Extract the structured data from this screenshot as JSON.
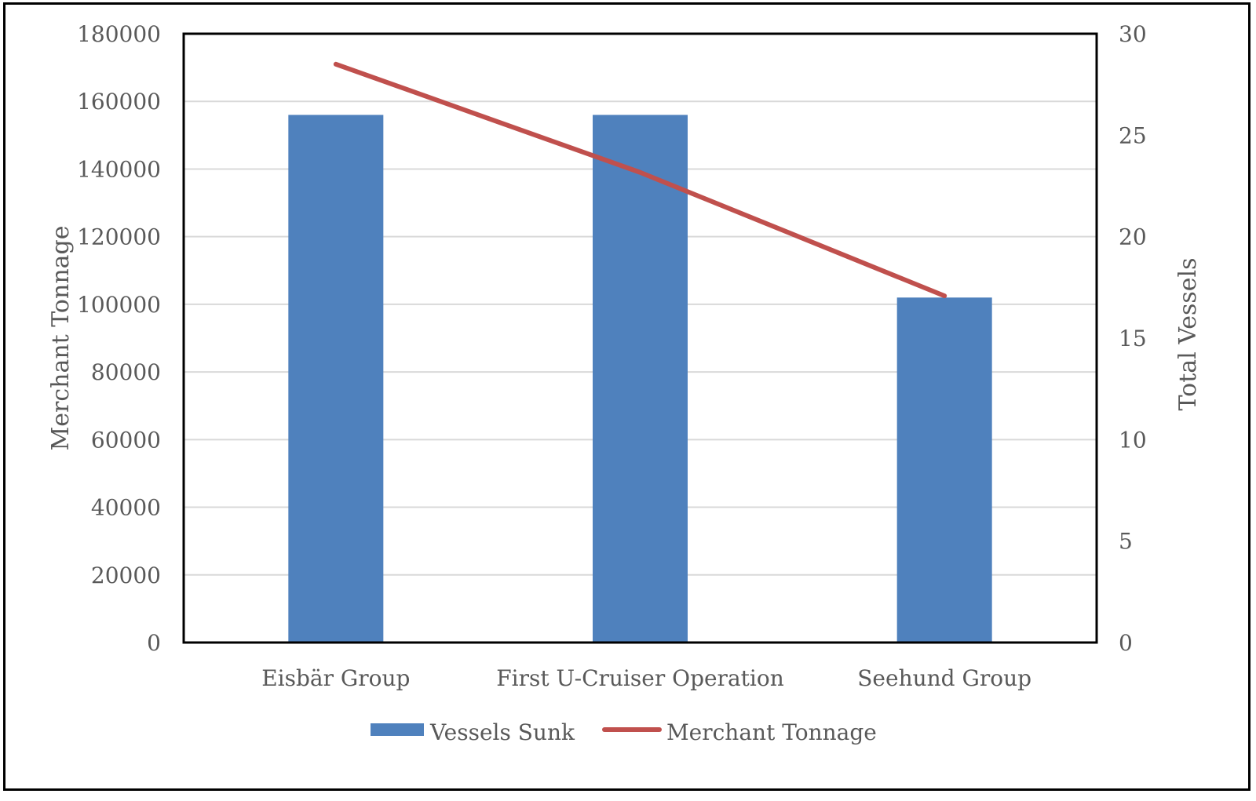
{
  "chart_data": {
    "type": "bar",
    "title": "",
    "categories": [
      "Eisbär Group",
      "First U-Cruiser Operation",
      "Seehund Group"
    ],
    "series": [
      {
        "name": "Vessels Sunk",
        "type": "bar",
        "axis": "right",
        "values": [
          26,
          26,
          17
        ],
        "color": "#4F81BD"
      },
      {
        "name": "Merchant Tonnage",
        "type": "line",
        "axis": "left",
        "values": [
          171000,
          139000,
          102500
        ],
        "color": "#C0504D"
      }
    ],
    "ylabel": "Merchant Tonnage",
    "ylim": [
      0,
      180000
    ],
    "yticks": [
      "0",
      "20000",
      "40000",
      "60000",
      "80000",
      "100000",
      "120000",
      "140000",
      "160000",
      "180000"
    ],
    "y2label": "Total Vessels",
    "y2lim": [
      0,
      30
    ],
    "y2ticks": [
      "0",
      "5",
      "10",
      "15",
      "20",
      "25",
      "30"
    ],
    "grid": true,
    "legend": "bottom"
  }
}
